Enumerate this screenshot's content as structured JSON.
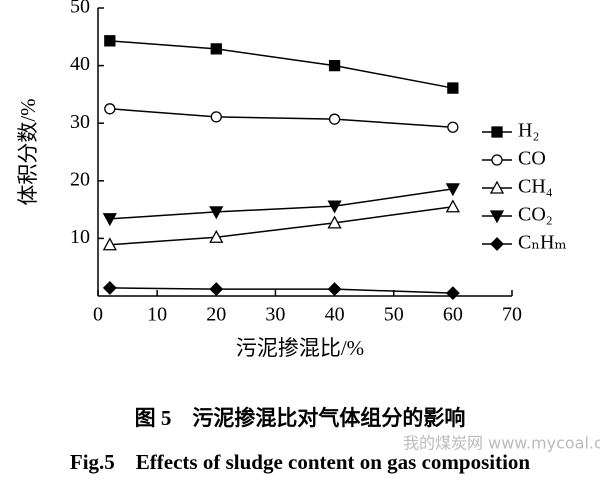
{
  "chart_data": {
    "type": "line",
    "xlabel": "污泥掺混比/%",
    "ylabel": "体积分数/%",
    "x": [
      2,
      20,
      40,
      60
    ],
    "series": [
      {
        "name": "H₂",
        "color": "#000000",
        "marker": "square-filled",
        "values": [
          44.3,
          42.9,
          40.0,
          36.1
        ]
      },
      {
        "name": "CO",
        "color": "#000000",
        "marker": "circle-open",
        "values": [
          32.5,
          31.1,
          30.7,
          29.3
        ]
      },
      {
        "name": "CH₄",
        "color": "#000000",
        "marker": "triangle-up-open",
        "values": [
          8.9,
          10.2,
          12.7,
          15.5
        ]
      },
      {
        "name": "CO₂",
        "color": "#000000",
        "marker": "triangle-down-filled",
        "values": [
          13.4,
          14.6,
          15.6,
          18.6
        ]
      },
      {
        "name": "CₙHₘ",
        "color": "#000000",
        "marker": "diamond-filled",
        "values": [
          1.4,
          1.2,
          1.2,
          0.5
        ]
      }
    ],
    "xlim": [
      0,
      70
    ],
    "xticks": [
      0,
      10,
      20,
      30,
      40,
      50,
      60,
      70
    ],
    "ylim": [
      0,
      50
    ],
    "yticks": [
      10,
      20,
      30,
      40,
      50
    ],
    "caption_cn": "图 5　污泥掺混比对气体组分的影响",
    "caption_en": "Fig.5　Effects of sludge content on gas composition",
    "watermark": "我的煤炭网 www.mycoal.cn"
  }
}
